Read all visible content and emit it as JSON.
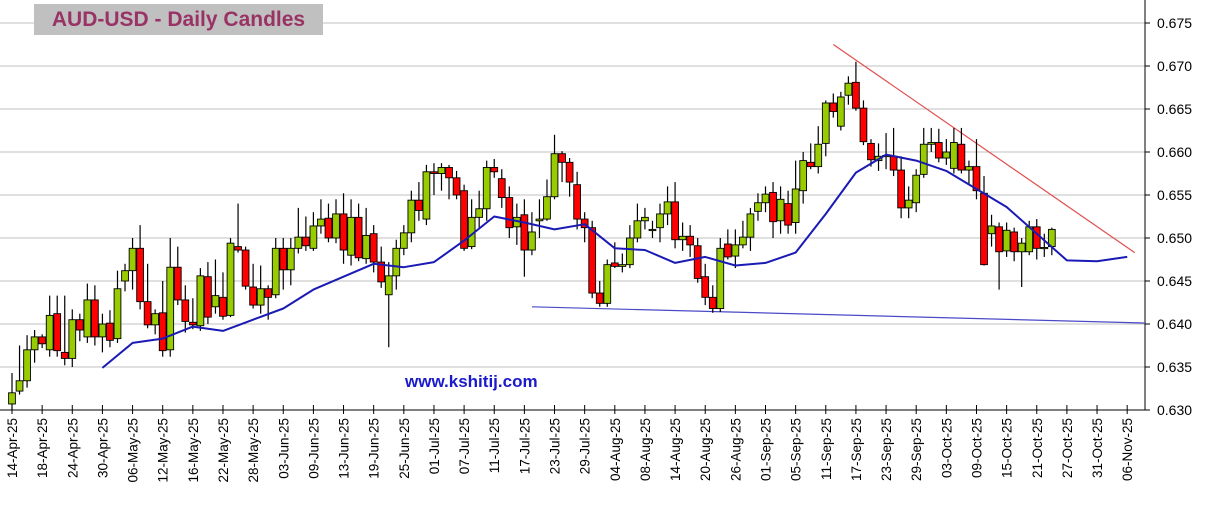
{
  "chart_data": {
    "type": "candlestick",
    "title": "AUD-USD - Daily Candles",
    "watermark": "www.kshitij.com",
    "ylim": [
      0.63,
      0.675
    ],
    "y_ticks": [
      "0.630",
      "0.635",
      "0.640",
      "0.645",
      "0.650",
      "0.655",
      "0.660",
      "0.665",
      "0.670",
      "0.675"
    ],
    "y_axis_position": "right",
    "grid": "horizontal",
    "x_ticks": [
      "14-Apr-25",
      "18-Apr-25",
      "24-Apr-25",
      "30-Apr-25",
      "06-May-25",
      "12-May-25",
      "16-May-25",
      "22-May-25",
      "28-May-25",
      "03-Jun-25",
      "09-Jun-25",
      "13-Jun-25",
      "19-Jun-25",
      "25-Jun-25",
      "01-Jul-25",
      "07-Jul-25",
      "11-Jul-25",
      "17-Jul-25",
      "23-Jul-25",
      "29-Jul-25",
      "04-Aug-25",
      "08-Aug-25",
      "14-Aug-25",
      "20-Aug-25",
      "26-Aug-25",
      "01-Sep-25",
      "05-Sep-25",
      "11-Sep-25",
      "17-Sep-25",
      "23-Sep-25",
      "29-Sep-25",
      "03-Oct-25",
      "09-Oct-25",
      "15-Oct-25",
      "21-Oct-25",
      "27-Oct-25",
      "31-Oct-25",
      "06-Nov-25"
    ],
    "colors": {
      "up": "#99cc00",
      "down": "#ff0000",
      "ma": "#1a1ab4",
      "resistance": "#e05050",
      "support": "#4a4ac8",
      "title_bg": "#c0c0c0",
      "title_text": "#993366",
      "watermark": "#1a1acc"
    },
    "ohlc_fields": [
      "open",
      "high",
      "low",
      "close"
    ],
    "candles": [
      [
        0.6307,
        0.6343,
        0.63,
        0.632
      ],
      [
        0.6322,
        0.6375,
        0.6318,
        0.6334
      ],
      [
        0.6334,
        0.6387,
        0.6326,
        0.637
      ],
      [
        0.637,
        0.6393,
        0.6355,
        0.6385
      ],
      [
        0.6385,
        0.6388,
        0.6372,
        0.6377
      ],
      [
        0.637,
        0.6433,
        0.6362,
        0.641
      ],
      [
        0.6412,
        0.6433,
        0.6362,
        0.6369
      ],
      [
        0.6367,
        0.6433,
        0.6352,
        0.636
      ],
      [
        0.636,
        0.6417,
        0.635,
        0.6405
      ],
      [
        0.6405,
        0.6412,
        0.638,
        0.6393
      ],
      [
        0.6385,
        0.6447,
        0.6378,
        0.6428
      ],
      [
        0.6428,
        0.6445,
        0.6375,
        0.6385
      ],
      [
        0.6385,
        0.6412,
        0.6367,
        0.64
      ],
      [
        0.6401,
        0.6416,
        0.6373,
        0.6381
      ],
      [
        0.6383,
        0.6462,
        0.6378,
        0.6441
      ],
      [
        0.645,
        0.647,
        0.6438,
        0.6462
      ],
      [
        0.6462,
        0.65,
        0.644,
        0.6488
      ],
      [
        0.6488,
        0.6515,
        0.6417,
        0.6426
      ],
      [
        0.6426,
        0.647,
        0.6395,
        0.6399
      ],
      [
        0.6399,
        0.6417,
        0.6388,
        0.6412
      ],
      [
        0.6413,
        0.645,
        0.6362,
        0.6369
      ],
      [
        0.637,
        0.65,
        0.6362,
        0.6466
      ],
      [
        0.6466,
        0.649,
        0.6422,
        0.6428
      ],
      [
        0.6428,
        0.6445,
        0.639,
        0.6403
      ],
      [
        0.6402,
        0.643,
        0.6394,
        0.6399
      ],
      [
        0.6398,
        0.6465,
        0.6392,
        0.6456
      ],
      [
        0.6455,
        0.6472,
        0.64,
        0.6408
      ],
      [
        0.642,
        0.6475,
        0.6412,
        0.6433
      ],
      [
        0.6431,
        0.646,
        0.6405,
        0.6409
      ],
      [
        0.641,
        0.65,
        0.6408,
        0.6494
      ],
      [
        0.649,
        0.654,
        0.6483,
        0.6486
      ],
      [
        0.6486,
        0.649,
        0.644,
        0.6444
      ],
      [
        0.6443,
        0.647,
        0.6418,
        0.6422
      ],
      [
        0.6422,
        0.6468,
        0.6412,
        0.6441
      ],
      [
        0.6441,
        0.6445,
        0.6405,
        0.6431
      ],
      [
        0.6434,
        0.65,
        0.643,
        0.6488
      ],
      [
        0.6488,
        0.65,
        0.644,
        0.6463
      ],
      [
        0.6463,
        0.65,
        0.6445,
        0.6488
      ],
      [
        0.6488,
        0.6535,
        0.6482,
        0.6501
      ],
      [
        0.6501,
        0.6525,
        0.6485,
        0.6491
      ],
      [
        0.6488,
        0.653,
        0.6485,
        0.6514
      ],
      [
        0.6514,
        0.6545,
        0.6505,
        0.6522
      ],
      [
        0.6523,
        0.654,
        0.6495,
        0.65
      ],
      [
        0.65,
        0.6545,
        0.6494,
        0.6528
      ],
      [
        0.6528,
        0.6552,
        0.647,
        0.6486
      ],
      [
        0.648,
        0.6545,
        0.6468,
        0.6524
      ],
      [
        0.6524,
        0.654,
        0.6473,
        0.6477
      ],
      [
        0.6476,
        0.6535,
        0.647,
        0.6503
      ],
      [
        0.6505,
        0.6515,
        0.646,
        0.6472
      ],
      [
        0.6472,
        0.649,
        0.6442,
        0.6449
      ],
      [
        0.6434,
        0.6472,
        0.6373,
        0.6456
      ],
      [
        0.6456,
        0.6498,
        0.644,
        0.6488
      ],
      [
        0.6488,
        0.6515,
        0.648,
        0.6506
      ],
      [
        0.6506,
        0.6555,
        0.6495,
        0.6544
      ],
      [
        0.6544,
        0.6565,
        0.652,
        0.6532
      ],
      [
        0.6522,
        0.6585,
        0.6515,
        0.6577
      ],
      [
        0.6577,
        0.6587,
        0.655,
        0.6575
      ],
      [
        0.6575,
        0.6587,
        0.6555,
        0.6582
      ],
      [
        0.6582,
        0.6585,
        0.6545,
        0.657
      ],
      [
        0.657,
        0.6578,
        0.6545,
        0.655
      ],
      [
        0.6555,
        0.6562,
        0.6485,
        0.6488
      ],
      [
        0.649,
        0.6545,
        0.6487,
        0.6524
      ],
      [
        0.6524,
        0.6555,
        0.651,
        0.6534
      ],
      [
        0.6534,
        0.659,
        0.652,
        0.6582
      ],
      [
        0.6582,
        0.6592,
        0.657,
        0.6577
      ],
      [
        0.6569,
        0.658,
        0.6535,
        0.6547
      ],
      [
        0.6547,
        0.656,
        0.65,
        0.6512
      ],
      [
        0.6513,
        0.654,
        0.6492,
        0.6524
      ],
      [
        0.6527,
        0.6545,
        0.6455,
        0.6486
      ],
      [
        0.6486,
        0.653,
        0.648,
        0.6507
      ],
      [
        0.652,
        0.6545,
        0.65,
        0.6522
      ],
      [
        0.6522,
        0.6568,
        0.652,
        0.6548
      ],
      [
        0.6548,
        0.662,
        0.6545,
        0.6598
      ],
      [
        0.6598,
        0.6601,
        0.6565,
        0.6588
      ],
      [
        0.6588,
        0.6593,
        0.6548,
        0.6565
      ],
      [
        0.6562,
        0.6577,
        0.651,
        0.6522
      ],
      [
        0.6522,
        0.653,
        0.6495,
        0.6512
      ],
      [
        0.6512,
        0.652,
        0.643,
        0.6436
      ],
      [
        0.6436,
        0.645,
        0.642,
        0.6424
      ],
      [
        0.6424,
        0.6475,
        0.642,
        0.6469
      ],
      [
        0.6471,
        0.6495,
        0.6465,
        0.6467
      ],
      [
        0.6467,
        0.6482,
        0.646,
        0.6469
      ],
      [
        0.6469,
        0.6515,
        0.6465,
        0.65
      ],
      [
        0.65,
        0.654,
        0.6495,
        0.652
      ],
      [
        0.652,
        0.6535,
        0.651,
        0.6524
      ],
      [
        0.651,
        0.652,
        0.65,
        0.651
      ],
      [
        0.6512,
        0.654,
        0.6495,
        0.6528
      ],
      [
        0.6528,
        0.656,
        0.6515,
        0.6542
      ],
      [
        0.6542,
        0.6565,
        0.6488,
        0.6498
      ],
      [
        0.6498,
        0.6518,
        0.6485,
        0.6502
      ],
      [
        0.6502,
        0.6515,
        0.6478,
        0.6492
      ],
      [
        0.6491,
        0.65,
        0.6448,
        0.6453
      ],
      [
        0.6455,
        0.647,
        0.6422,
        0.6431
      ],
      [
        0.6431,
        0.6445,
        0.6413,
        0.6418
      ],
      [
        0.6418,
        0.65,
        0.6414,
        0.6488
      ],
      [
        0.6493,
        0.651,
        0.6475,
        0.6478
      ],
      [
        0.6479,
        0.651,
        0.6465,
        0.6492
      ],
      [
        0.6492,
        0.652,
        0.6488,
        0.6501
      ],
      [
        0.6501,
        0.6535,
        0.6485,
        0.6528
      ],
      [
        0.6531,
        0.6552,
        0.652,
        0.6541
      ],
      [
        0.6541,
        0.656,
        0.653,
        0.6551
      ],
      [
        0.6553,
        0.6565,
        0.65,
        0.6519
      ],
      [
        0.652,
        0.656,
        0.6505,
        0.6545
      ],
      [
        0.654,
        0.6555,
        0.6505,
        0.6515
      ],
      [
        0.6518,
        0.659,
        0.6505,
        0.6557
      ],
      [
        0.6555,
        0.66,
        0.654,
        0.659
      ],
      [
        0.6588,
        0.661,
        0.658,
        0.6583
      ],
      [
        0.6583,
        0.663,
        0.6575,
        0.6609
      ],
      [
        0.661,
        0.666,
        0.6595,
        0.6657
      ],
      [
        0.6657,
        0.6668,
        0.664,
        0.6647
      ],
      [
        0.663,
        0.667,
        0.6625,
        0.6664
      ],
      [
        0.6666,
        0.6688,
        0.6655,
        0.668
      ],
      [
        0.6681,
        0.6705,
        0.6648,
        0.6651
      ],
      [
        0.6651,
        0.666,
        0.6608,
        0.6612
      ],
      [
        0.661,
        0.6615,
        0.6583,
        0.6591
      ],
      [
        0.659,
        0.661,
        0.6578,
        0.6595
      ],
      [
        0.6595,
        0.6622,
        0.658,
        0.6596
      ],
      [
        0.6595,
        0.6628,
        0.6572,
        0.6579
      ],
      [
        0.6579,
        0.6595,
        0.6523,
        0.6535
      ],
      [
        0.6535,
        0.656,
        0.6523,
        0.6544
      ],
      [
        0.6541,
        0.658,
        0.653,
        0.6573
      ],
      [
        0.6574,
        0.6628,
        0.657,
        0.6609
      ],
      [
        0.6609,
        0.6628,
        0.66,
        0.6611
      ],
      [
        0.6611,
        0.6627,
        0.6588,
        0.6593
      ],
      [
        0.6593,
        0.6615,
        0.6585,
        0.66
      ],
      [
        0.6581,
        0.6628,
        0.6575,
        0.6611
      ],
      [
        0.6609,
        0.6628,
        0.6575,
        0.6579
      ],
      [
        0.6579,
        0.659,
        0.6562,
        0.6583
      ],
      [
        0.6583,
        0.6615,
        0.6545,
        0.6555
      ],
      [
        0.6552,
        0.6572,
        0.6468,
        0.6469
      ],
      [
        0.6505,
        0.6527,
        0.649,
        0.6514
      ],
      [
        0.6513,
        0.6518,
        0.644,
        0.6484
      ],
      [
        0.6485,
        0.6518,
        0.6478,
        0.6509
      ],
      [
        0.6507,
        0.6512,
        0.6473,
        0.6484
      ],
      [
        0.6484,
        0.65,
        0.6443,
        0.6494
      ],
      [
        0.6484,
        0.652,
        0.648,
        0.6513
      ],
      [
        0.6513,
        0.6522,
        0.6475,
        0.6488
      ],
      [
        0.6488,
        0.6505,
        0.6478,
        0.6489
      ],
      [
        0.649,
        0.6512,
        0.648,
        0.651
      ]
    ],
    "moving_average": [
      {
        "date": "30-Apr-25",
        "value": 0.6349
      },
      {
        "date": "06-May-25",
        "value": 0.6378
      },
      {
        "date": "12-May-25",
        "value": 0.6383
      },
      {
        "date": "16-May-25",
        "value": 0.6397
      },
      {
        "date": "22-May-25",
        "value": 0.6392
      },
      {
        "date": "28-May-25",
        "value": 0.6405
      },
      {
        "date": "03-Jun-25",
        "value": 0.6418
      },
      {
        "date": "09-Jun-25",
        "value": 0.644
      },
      {
        "date": "13-Jun-25",
        "value": 0.6455
      },
      {
        "date": "19-Jun-25",
        "value": 0.647
      },
      {
        "date": "25-Jun-25",
        "value": 0.6466
      },
      {
        "date": "01-Jul-25",
        "value": 0.6472
      },
      {
        "date": "07-Jul-25",
        "value": 0.6497
      },
      {
        "date": "11-Jul-25",
        "value": 0.6525
      },
      {
        "date": "17-Jul-25",
        "value": 0.6518
      },
      {
        "date": "23-Jul-25",
        "value": 0.651
      },
      {
        "date": "29-Jul-25",
        "value": 0.6516
      },
      {
        "date": "04-Aug-25",
        "value": 0.6488
      },
      {
        "date": "08-Aug-25",
        "value": 0.6486
      },
      {
        "date": "14-Aug-25",
        "value": 0.6471
      },
      {
        "date": "20-Aug-25",
        "value": 0.6478
      },
      {
        "date": "26-Aug-25",
        "value": 0.6468
      },
      {
        "date": "01-Sep-25",
        "value": 0.6471
      },
      {
        "date": "05-Sep-25",
        "value": 0.6483
      },
      {
        "date": "11-Sep-25",
        "value": 0.6528
      },
      {
        "date": "17-Sep-25",
        "value": 0.6576
      },
      {
        "date": "23-Sep-25",
        "value": 0.6597
      },
      {
        "date": "29-Sep-25",
        "value": 0.659
      },
      {
        "date": "03-Oct-25",
        "value": 0.6578
      },
      {
        "date": "09-Oct-25",
        "value": 0.6557
      },
      {
        "date": "15-Oct-25",
        "value": 0.6536
      },
      {
        "date": "21-Oct-25",
        "value": 0.6505
      },
      {
        "date": "27-Oct-25",
        "value": 0.6474
      },
      {
        "date": "31-Oct-25",
        "value": 0.6473
      },
      {
        "date": "06-Nov-25",
        "value": 0.6478
      }
    ],
    "trendlines": [
      {
        "kind": "resistance",
        "points": [
          {
            "date": "12-Sep-25",
            "value": 0.6725
          },
          {
            "date": "07-Nov-25",
            "value": 0.6483
          }
        ]
      },
      {
        "kind": "support",
        "points": [
          {
            "date": "18-Jul-25",
            "value": 0.642
          },
          {
            "date": "11-Nov-25",
            "value": 0.6401
          }
        ]
      }
    ]
  }
}
